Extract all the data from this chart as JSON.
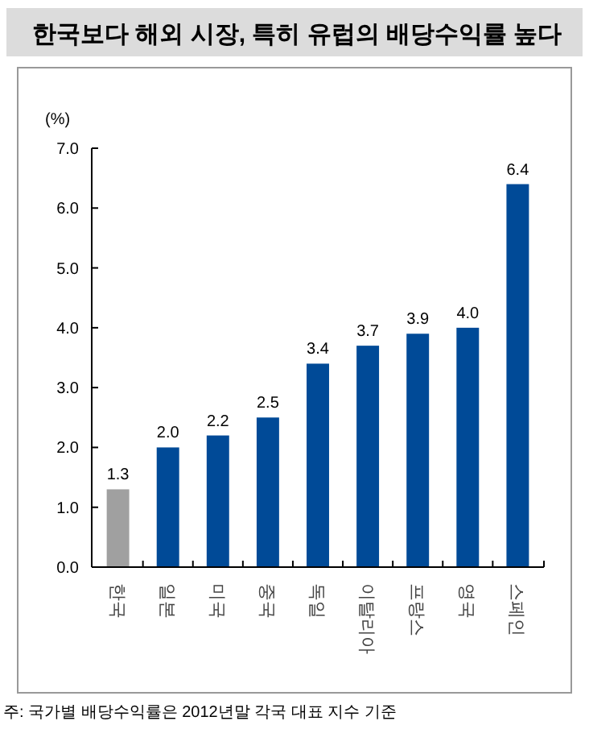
{
  "chart_data": {
    "type": "bar",
    "title": "한국보다 해외 시장, 특히 유럽의 배당수익률 높다",
    "ylabel": "(%)",
    "categories": [
      "한국",
      "일본",
      "미국",
      "중국",
      "독일",
      "이탈리아",
      "프랑스",
      "영국",
      "스페인"
    ],
    "values": [
      1.3,
      2.0,
      2.2,
      2.5,
      3.4,
      3.7,
      3.9,
      4.0,
      6.4
    ],
    "colors": [
      "#a0a0a0",
      "#004a97",
      "#004a97",
      "#004a97",
      "#004a97",
      "#004a97",
      "#004a97",
      "#004a97",
      "#004a97"
    ],
    "ylim": [
      0,
      7
    ],
    "yticks": [
      {
        "value": 0,
        "label": "0.0"
      },
      {
        "value": 1,
        "label": "1.0"
      },
      {
        "value": 2,
        "label": "2.0"
      },
      {
        "value": 3,
        "label": "3.0"
      },
      {
        "value": 4,
        "label": "4.0"
      },
      {
        "value": 5,
        "label": "5.0"
      },
      {
        "value": 6,
        "label": "6.0"
      },
      {
        "value": 7,
        "label": "7.0"
      }
    ],
    "value_labels": [
      "1.3",
      "2.0",
      "2.2",
      "2.5",
      "3.4",
      "3.7",
      "3.9",
      "4.0",
      "6.4"
    ],
    "grid": false,
    "annotations": [
      "주: 국가별 배당수익률은 2012년말 각국 대표 지수 기준"
    ]
  }
}
